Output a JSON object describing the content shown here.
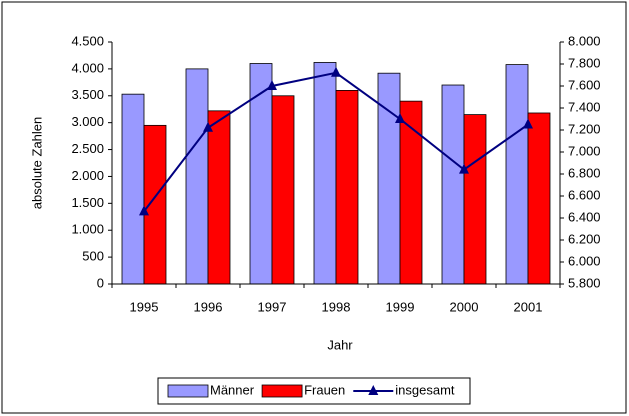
{
  "chart_data": {
    "type": "bar_line",
    "x_label": "Jahr",
    "y_label": "absolute Zahlen",
    "categories": [
      "1995",
      "1996",
      "1997",
      "1998",
      "1999",
      "2000",
      "2001"
    ],
    "series": [
      {
        "name": "Männer",
        "type": "bar",
        "color": "#9999ff",
        "values": [
          3530,
          4000,
          4100,
          4120,
          3920,
          3700,
          4080
        ]
      },
      {
        "name": "Frauen",
        "type": "bar",
        "color": "#ff0000",
        "values": [
          2950,
          3220,
          3500,
          3600,
          3400,
          3150,
          3180
        ]
      },
      {
        "name": "insgesamt",
        "type": "line",
        "axis": "y2",
        "color": "#000080",
        "values": [
          6460,
          7220,
          7600,
          7720,
          7300,
          6840,
          7250
        ]
      }
    ],
    "ylim": [
      0,
      4500
    ],
    "yticks": [
      0,
      {
        "value": 500,
        "label": "500"
      },
      {
        "value": 1000,
        "label": "1.000"
      },
      {
        "value": 1500,
        "label": "1.500"
      },
      {
        "value": 2000,
        "label": "2.000"
      },
      {
        "value": 2500,
        "label": "2.500"
      },
      {
        "value": 3000,
        "label": "3.000"
      },
      {
        "value": 3500,
        "label": "3.500"
      },
      {
        "value": 4000,
        "label": "4.000"
      },
      {
        "value": 4500,
        "label": "4.500"
      }
    ],
    "y2lim": [
      5800,
      8000
    ],
    "y2ticks": [
      {
        "value": 5800,
        "label": "5.800"
      },
      {
        "value": 6000,
        "label": "6.000"
      },
      {
        "value": 6200,
        "label": "6.200"
      },
      {
        "value": 6400,
        "label": "6.400"
      },
      {
        "value": 6600,
        "label": "6.600"
      },
      {
        "value": 6800,
        "label": "6.800"
      },
      {
        "value": 7000,
        "label": "7.000"
      },
      {
        "value": 7200,
        "label": "7.200"
      },
      {
        "value": 7400,
        "label": "7.400"
      },
      {
        "value": 7600,
        "label": "7.600"
      },
      {
        "value": 7800,
        "label": "7.800"
      },
      {
        "value": 8000,
        "label": "8.000"
      }
    ],
    "legend": "bottom"
  }
}
